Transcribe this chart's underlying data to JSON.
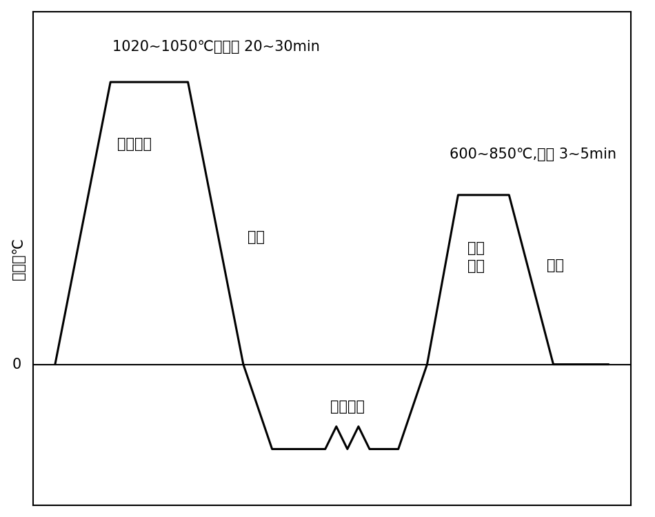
{
  "ylabel": "温度，℃",
  "zero_label": "0",
  "annotation1": "1020~1050℃，保温 20~30min",
  "annotation2": "固溶处理",
  "annotation3": "水冷",
  "annotation4": "深冷轧制",
  "annotation5": "600~850℃,保温 3~5min",
  "annotation6": "快速\n退火",
  "annotation7": "水冷",
  "line_color": "#000000",
  "bg_color": "#ffffff",
  "font_size_annot": 15,
  "font_size_label": 15,
  "figsize": [
    9.5,
    7.5
  ],
  "dpi": 100,
  "profile_x": [
    1.0,
    3.5,
    7.0,
    9.5,
    10.8,
    12.0,
    13.2,
    13.7,
    14.2,
    14.7,
    15.2,
    16.5,
    17.8,
    19.2,
    21.5,
    23.5,
    26.0
  ],
  "profile_y": [
    0,
    10,
    10,
    0,
    -3,
    -3,
    -3,
    -2.2,
    -3,
    -2.2,
    -3,
    -3,
    0,
    6,
    6,
    0,
    0
  ],
  "xlim": [
    0.0,
    27.0
  ],
  "ylim": [
    -5.0,
    12.5
  ]
}
